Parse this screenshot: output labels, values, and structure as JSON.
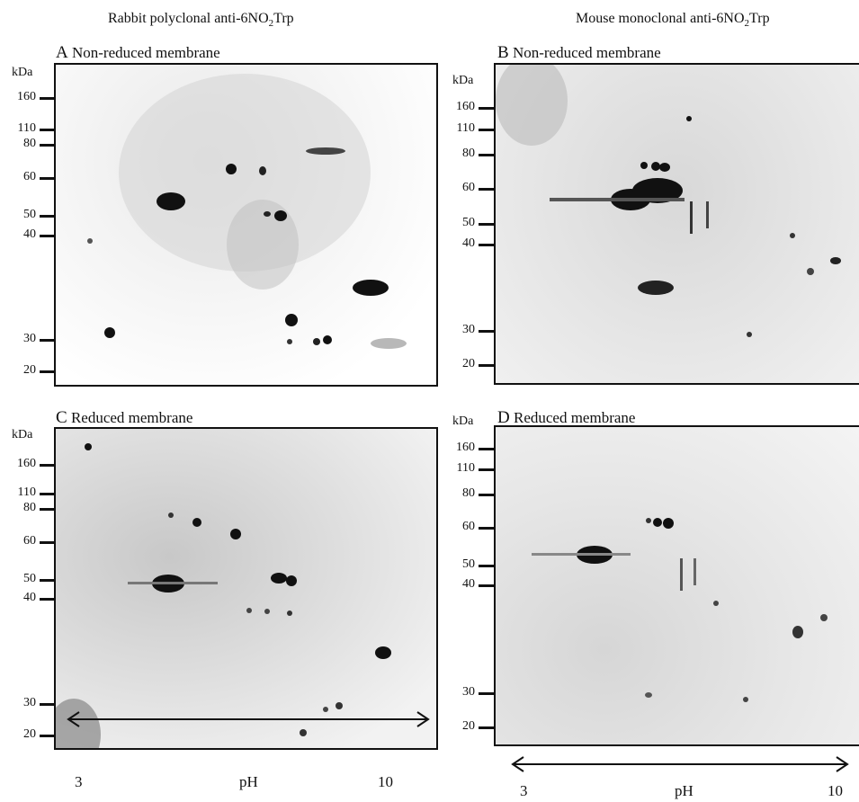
{
  "columns": [
    {
      "title_main": "Rabbit polyclonal anti-6NO",
      "title_sub": "2",
      "title_end": "Trp"
    },
    {
      "title_main": "Mouse  monoclonal  anti-6NO",
      "title_sub": "2",
      "title_end": "Trp"
    }
  ],
  "panels": {
    "A": {
      "letter": "A",
      "label": "Non-reduced membrane"
    },
    "B": {
      "letter": "B",
      "label": "Non-reduced membrane"
    },
    "C": {
      "letter": "C",
      "label": "Reduced membrane"
    },
    "D": {
      "letter": "D",
      "label": "Reduced membrane"
    }
  },
  "kda_unit": "kDa",
  "mw_ticks_A": [
    "160",
    "110",
    "80",
    "60",
    "50",
    "40",
    "30",
    "20"
  ],
  "mw_ticks_B": [
    "160",
    "110",
    "80",
    "60",
    "50",
    "40",
    "30",
    "20"
  ],
  "mw_ticks_C": [
    "160",
    "110",
    "80",
    "60",
    "50",
    "40",
    "30",
    "20"
  ],
  "mw_ticks_D": [
    "160",
    "110",
    "80",
    "60",
    "50",
    "40",
    "30",
    "20"
  ],
  "ph_axis": {
    "left": "3",
    "center": "pH",
    "right": "10"
  }
}
